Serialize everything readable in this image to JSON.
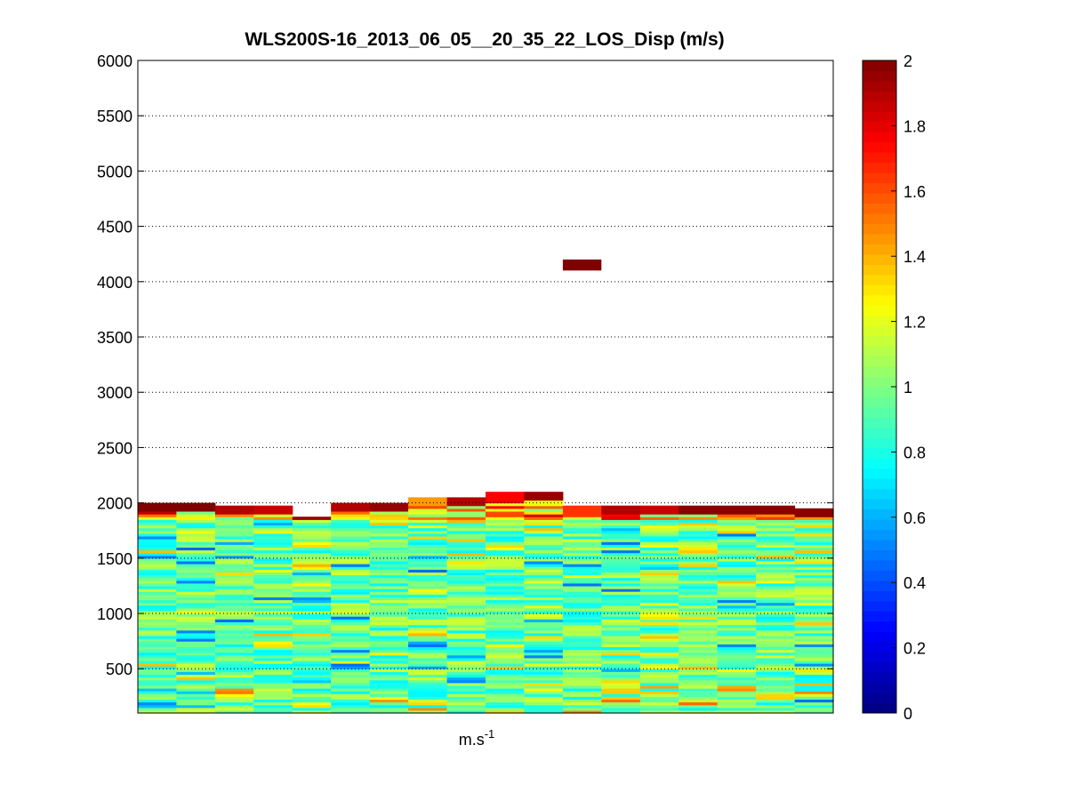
{
  "chart_data": {
    "type": "heatmap",
    "title": "WLS200S-16_2013_06_05__20_35_22_LOS_Disp (m/s)",
    "xlabel_base": "m.s",
    "xlabel_exp": "-1",
    "ylabel": "",
    "ylim": [
      100,
      6000
    ],
    "yticks": [
      500,
      1000,
      1500,
      2000,
      2500,
      3000,
      3500,
      4000,
      4500,
      5000,
      5500,
      6000
    ],
    "grid": "horizontal dotted",
    "colormap": "jet",
    "clim": [
      0,
      2
    ],
    "colorbar_ticks": [
      0,
      0.2,
      0.4,
      0.6,
      0.8,
      1,
      1.2,
      1.4,
      1.6,
      1.8,
      2
    ],
    "n_columns": 18,
    "range_gate_m": 25,
    "column_top_m": [
      2000,
      2000,
      1975,
      1975,
      1875,
      2000,
      2000,
      2050,
      2050,
      2100,
      2100,
      1975,
      1975,
      1975,
      1975,
      1975,
      1975,
      1950
    ],
    "top_band_values": [
      2.0,
      2.0,
      1.9,
      1.85,
      1.95,
      1.9,
      1.95,
      1.45,
      1.9,
      1.75,
      1.95,
      1.65,
      1.9,
      1.85,
      1.98,
      1.98,
      1.98,
      1.98
    ],
    "isolated_cells": [
      {
        "column": 11,
        "height_bottom_m": 4100,
        "height_top_m": 4200,
        "value": 2.0
      }
    ],
    "bulk_value_range": [
      0.45,
      1.4
    ],
    "bulk_mean_value": 0.95
  }
}
